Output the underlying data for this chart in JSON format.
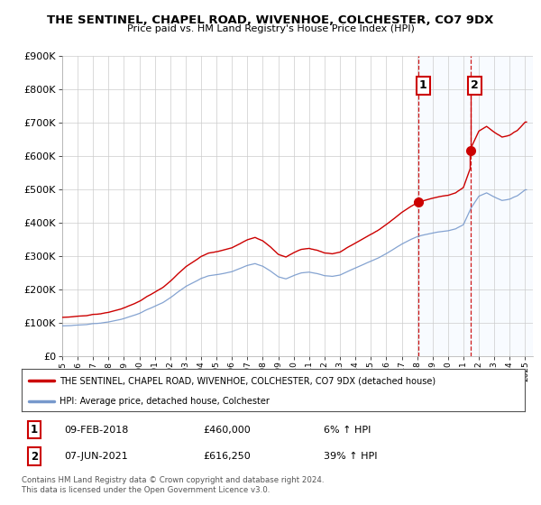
{
  "title": "THE SENTINEL, CHAPEL ROAD, WIVENHOE, COLCHESTER, CO7 9DX",
  "subtitle": "Price paid vs. HM Land Registry's House Price Index (HPI)",
  "ylim": [
    0,
    900000
  ],
  "xlim_start": 1995.0,
  "xlim_end": 2025.5,
  "hpi_color": "#7799cc",
  "price_color": "#cc0000",
  "annotation_box_color": "#cc0000",
  "shaded_color": "#ddeeff",
  "sale1_date": "09-FEB-2018",
  "sale1_price": "£460,000",
  "sale1_hpi": "6% ↑ HPI",
  "sale1_x": 2018.08,
  "sale1_y": 460000,
  "sale2_date": "07-JUN-2021",
  "sale2_price": "£616,250",
  "sale2_hpi": "39% ↑ HPI",
  "sale2_x": 2021.44,
  "sale2_y": 616250,
  "legend_line1": "THE SENTINEL, CHAPEL ROAD, WIVENHOE, COLCHESTER, CO7 9DX (detached house)",
  "legend_line2": "HPI: Average price, detached house, Colchester",
  "footer1": "Contains HM Land Registry data © Crown copyright and database right 2024.",
  "footer2": "This data is licensed under the Open Government Licence v3.0.",
  "bg_color": "#ffffff",
  "plot_bg_color": "#ffffff",
  "grid_color": "#cccccc"
}
